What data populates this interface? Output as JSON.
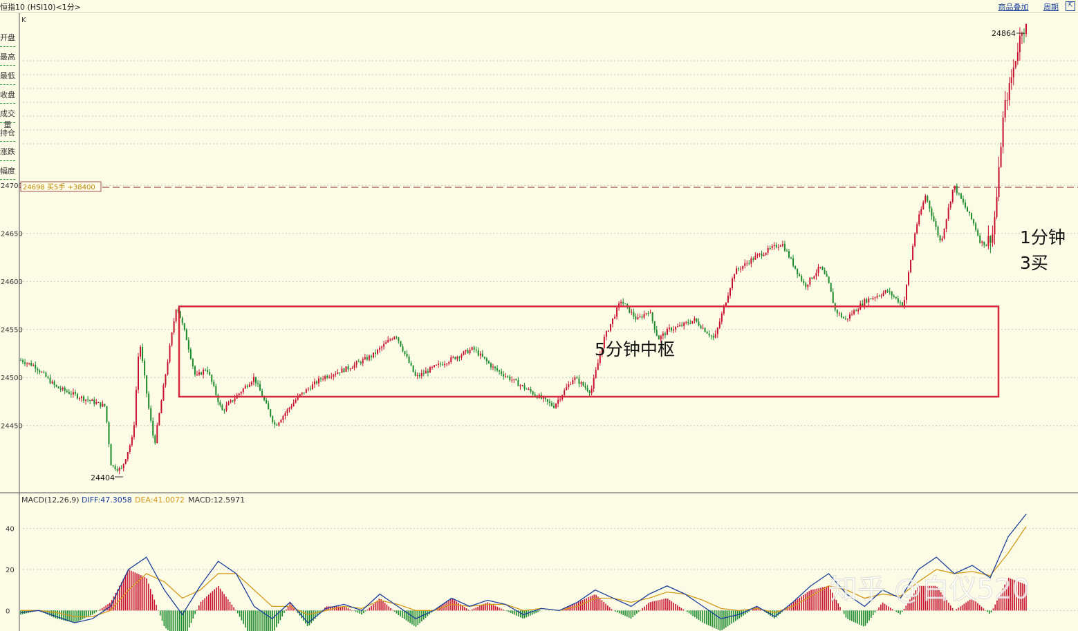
{
  "window": {
    "title": "恒指10 (HSI10)<1分>",
    "links": [
      "商品叠加",
      "周期"
    ]
  },
  "sidebar": {
    "items": [
      "开盘",
      "最高",
      "最低",
      "收盘",
      "成交量",
      "持仓",
      "涨跌",
      "幅度"
    ]
  },
  "price_panel": {
    "label": "K",
    "order_tag": "24698 买5手 +38400",
    "order_line_price": 24698
  },
  "macd_panel": {
    "params": "MACD(12,26,9)",
    "diff_label": "DIFF:47.3058",
    "dea_label": "DEA:41.0072",
    "macd_label": "MACD:12.5971"
  },
  "annotations": {
    "zhongshu": "5分钟中枢",
    "buy_line1": "1分钟",
    "buy_line2": "3买"
  },
  "watermark": "知乎 @白仪520",
  "colors": {
    "background": "#fbfbe6",
    "up": "#c8102e",
    "down": "#1b8a2a",
    "box": "#d6283c",
    "diff": "#1a3f9a",
    "dea": "#d49a1a"
  },
  "chart_data": [
    {
      "type": "line",
      "title": "K",
      "ylim": [
        24380,
        24880
      ],
      "y_ticks": [
        "24450",
        "24500",
        "24550",
        "24600",
        "24650",
        "24700"
      ],
      "annotations": {
        "low": "24404",
        "high": "24864"
      },
      "box_price_range": [
        24480,
        24574
      ],
      "path_x": [
        0,
        0.014,
        0.035,
        0.058,
        0.084,
        0.09,
        0.1,
        0.112,
        0.118,
        0.127,
        0.133,
        0.145,
        0.155,
        0.165,
        0.174,
        0.185,
        0.2,
        0.214,
        0.232,
        0.253,
        0.276,
        0.3,
        0.326,
        0.35,
        0.373,
        0.393,
        0.41,
        0.43,
        0.45,
        0.47,
        0.5,
        0.53,
        0.55,
        0.567,
        0.58,
        0.597,
        0.613,
        0.625,
        0.634,
        0.645,
        0.655,
        0.67,
        0.69,
        0.71,
        0.73,
        0.757,
        0.78,
        0.795,
        0.803,
        0.81,
        0.82,
        0.84,
        0.862,
        0.878,
        0.89,
        0.9,
        0.915,
        0.928,
        0.948,
        0.955,
        0.96,
        0.967,
        0.972,
        0.976,
        0.98,
        0.983,
        0.987,
        0.99,
        0.993,
        0.996,
        1.0
      ],
      "price": [
        24518,
        24512,
        24490,
        24480,
        24470,
        24408,
        24404,
        24440,
        24540,
        24470,
        24430,
        24510,
        24576,
        24540,
        24500,
        24510,
        24465,
        24480,
        24500,
        24450,
        24480,
        24500,
        24510,
        24523,
        24545,
        24500,
        24510,
        24520,
        24530,
        24510,
        24490,
        24470,
        24500,
        24485,
        24540,
        24580,
        24560,
        24570,
        24540,
        24550,
        24553,
        24560,
        24540,
        24610,
        24625,
        24640,
        24595,
        24615,
        24600,
        24570,
        24560,
        24580,
        24590,
        24575,
        24655,
        24690,
        24640,
        24700,
        24660,
        24640,
        24640,
        24650,
        24700,
        24760,
        24790,
        24800,
        24820,
        24835,
        24850,
        24864,
        24864
      ]
    },
    {
      "type": "bar",
      "title": "MACD(12,26,9)",
      "ylim": [
        -10,
        50
      ],
      "y_ticks": [
        "0",
        "20",
        "40"
      ],
      "series": [
        {
          "name": "DIFF",
          "values": [
            -1,
            0,
            -3,
            -6,
            -4,
            2,
            20,
            26,
            10,
            -2,
            12,
            24,
            18,
            2,
            -4,
            4,
            -6,
            1,
            3,
            0,
            8,
            2,
            -4,
            0,
            6,
            2,
            5,
            3,
            -2,
            1,
            0,
            4,
            10,
            6,
            2,
            8,
            12,
            8,
            2,
            -4,
            -2,
            2,
            -3,
            4,
            12,
            18,
            8,
            2,
            10,
            6,
            20,
            26,
            18,
            22,
            16,
            36,
            47
          ]
        },
        {
          "name": "DEA",
          "values": [
            0,
            0,
            -1,
            -3,
            -3,
            0,
            10,
            18,
            14,
            6,
            10,
            18,
            18,
            10,
            2,
            2,
            -2,
            0,
            2,
            1,
            5,
            3,
            0,
            0,
            3,
            2,
            3,
            3,
            0,
            1,
            0,
            2,
            6,
            6,
            4,
            6,
            9,
            8,
            5,
            1,
            0,
            1,
            -1,
            2,
            7,
            12,
            10,
            6,
            8,
            7,
            14,
            20,
            18,
            19,
            17,
            28,
            41
          ]
        },
        {
          "name": "MACD",
          "values": [
            -2,
            0,
            -4,
            -6,
            -2,
            4,
            20,
            16,
            -8,
            -16,
            4,
            12,
            0,
            -16,
            -12,
            4,
            -8,
            2,
            2,
            -2,
            6,
            -2,
            -8,
            0,
            6,
            0,
            4,
            0,
            -4,
            0,
            0,
            4,
            8,
            0,
            -4,
            4,
            6,
            0,
            -6,
            -10,
            -4,
            2,
            -4,
            4,
            10,
            12,
            -4,
            -8,
            4,
            -2,
            12,
            12,
            0,
            6,
            -2,
            16,
            12.6
          ]
        }
      ]
    }
  ]
}
